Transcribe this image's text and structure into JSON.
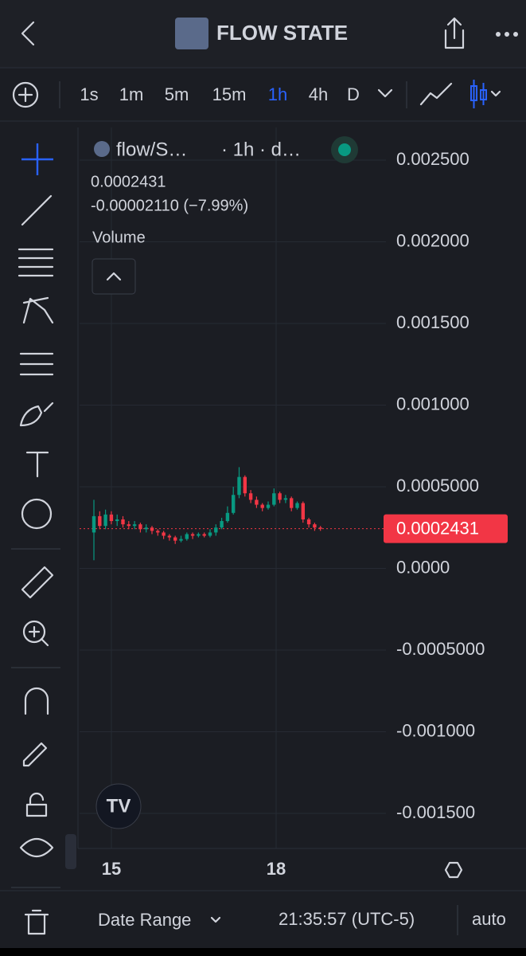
{
  "header": {
    "title": "FLOW STATE"
  },
  "toolbar": {
    "intervals": [
      "1s",
      "1m",
      "5m",
      "15m",
      "1h",
      "4h",
      "D"
    ],
    "active": 4
  },
  "chart_data": {
    "type": "candlestick",
    "symbol": "flow/S…",
    "meta": "· 1h · d…",
    "price": 0.0002431,
    "change": "-0.00002110 (−7.99%)",
    "pane_label": "Volume",
    "up_color": "#089981",
    "down_color": "#f23645",
    "open": [
      0.00022,
      0.00032,
      0.00026,
      0.00033,
      0.00029,
      0.0003,
      0.00027,
      0.00026,
      0.00027,
      0.00024,
      0.00025,
      0.00023,
      0.00022,
      0.0002,
      0.00019,
      0.00017,
      0.00018,
      0.00021,
      0.0002,
      0.00021,
      0.0002,
      0.00022,
      0.00025,
      0.00029,
      0.00034,
      0.00045,
      0.00056,
      0.00046,
      0.00042,
      0.00039,
      0.00037,
      0.00039,
      0.00046,
      0.00042,
      0.00043,
      0.00037,
      0.0004,
      0.0003,
      0.00027,
      0.00025
    ],
    "high": [
      0.00042,
      0.00035,
      0.00036,
      0.00035,
      0.00033,
      0.00032,
      0.00029,
      0.00029,
      0.00028,
      0.00027,
      0.00026,
      0.00024,
      0.00023,
      0.00021,
      0.0002,
      0.0002,
      0.00022,
      0.00022,
      0.00022,
      0.00022,
      0.00024,
      0.00027,
      0.00031,
      0.00038,
      0.0005,
      0.00062,
      0.00057,
      0.00048,
      0.00044,
      0.0004,
      0.00041,
      0.00049,
      0.00047,
      0.00045,
      0.00044,
      0.00041,
      0.00041,
      0.00031,
      0.00028,
      0.00026
    ],
    "low": [
      5e-05,
      0.00024,
      0.00024,
      0.00027,
      0.00026,
      0.00025,
      0.00024,
      0.00024,
      0.00022,
      0.00022,
      0.00021,
      0.0002,
      0.00018,
      0.00017,
      0.00015,
      0.00016,
      0.00017,
      0.00018,
      0.00019,
      0.00019,
      0.00019,
      0.0002,
      0.00024,
      0.00028,
      0.00033,
      0.00043,
      0.00044,
      0.0004,
      0.00037,
      0.00035,
      0.00036,
      0.00038,
      0.0004,
      0.0004,
      0.00035,
      0.00036,
      0.00028,
      0.00025,
      0.00023,
      0.00023
    ],
    "close": [
      0.00032,
      0.00026,
      0.00033,
      0.00029,
      0.0003,
      0.00027,
      0.00026,
      0.00027,
      0.00024,
      0.00025,
      0.00023,
      0.00022,
      0.0002,
      0.00019,
      0.00017,
      0.00018,
      0.00021,
      0.0002,
      0.00021,
      0.0002,
      0.00022,
      0.00025,
      0.00029,
      0.00034,
      0.00045,
      0.00056,
      0.00046,
      0.00042,
      0.00039,
      0.00037,
      0.00039,
      0.00046,
      0.00042,
      0.00043,
      0.00037,
      0.0004,
      0.0003,
      0.00027,
      0.00025,
      0.0002431
    ],
    "ylim": [
      -0.0017,
      0.0027
    ],
    "yticks": [
      {
        "value": 0.0025,
        "label": "0.002500"
      },
      {
        "value": 0.002,
        "label": "0.002000"
      },
      {
        "value": 0.0015,
        "label": "0.001500"
      },
      {
        "value": 0.001,
        "label": "0.001000"
      },
      {
        "value": 0.0005,
        "label": "0.0005000"
      },
      {
        "value": 0,
        "label": "0.0000"
      },
      {
        "value": -0.0005,
        "label": "-0.0005000"
      },
      {
        "value": -0.001,
        "label": "-0.001000"
      },
      {
        "value": -0.0015,
        "label": "-0.001500"
      }
    ],
    "xtick_labels": [
      "15",
      "18"
    ],
    "grid": true
  },
  "footer": {
    "date_range": "Date Range",
    "time": "21:35:57 (UTC-5)",
    "scale": "auto"
  }
}
